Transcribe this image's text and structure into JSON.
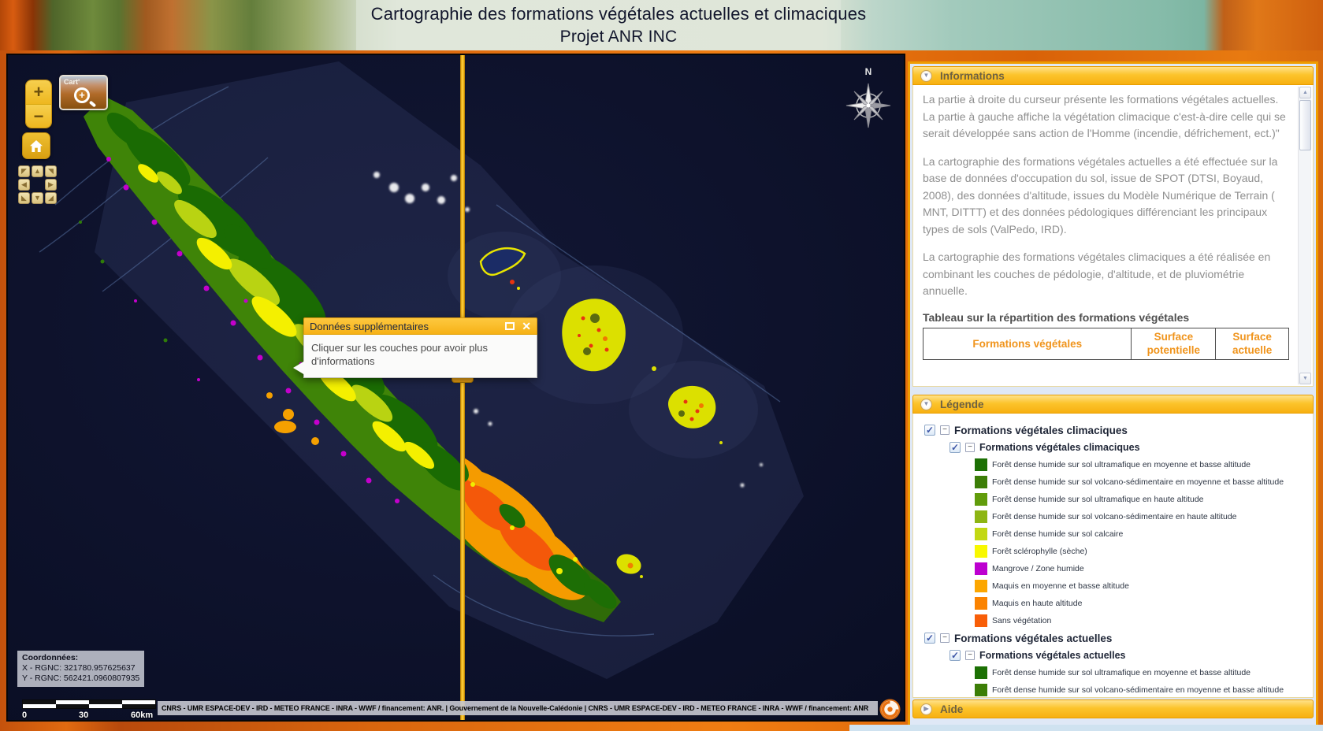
{
  "header": {
    "title_line1": "Cartographie des formations végétales actuelles et climaciques",
    "title_line2": "Projet ANR INC"
  },
  "map": {
    "logo_text": "Cart'",
    "popup": {
      "title": "Données supplémentaires",
      "body": "Cliquer sur les couches pour avoir plus d'informations"
    },
    "coordinates": {
      "label": "Coordonnées:",
      "x_line": "X - RGNC: 321780.957625637",
      "y_line": "Y - RGNC: 562421.0960807935"
    },
    "scalebar": {
      "start": "0",
      "mid": "30",
      "end": "60km"
    },
    "attribution": "CNRS - UMR ESPACE-DEV - IRD - METEO FRANCE - INRA - WWF / financement: ANR. | Gouvernement de la Nouvelle-Calédonie | CNRS - UMR ESPACE-DEV - IRD - METEO FRANCE - INRA - WWF / financement: ANR"
  },
  "sidebar": {
    "informations": {
      "title": "Informations",
      "paragraphs": [
        "La partie à droite du curseur présente les formations végétales actuelles. La partie à gauche affiche la végétation climacique c'est-à-dire celle qui se serait développée sans action de l'Homme (incendie, défrichement, ect.)\"",
        "La cartographie des formations végétales actuelles a été effectuée sur la base de données d'occupation du sol, issue de SPOT (DTSI, Boyaud, 2008), des données d'altitude, issues du Modèle Numérique de Terrain ( MNT, DITTT) et des données pédologiques différenciant les principaux types de sols (ValPedo, IRD).",
        "La cartographie des formations végétales climaciques a été réalisée en combinant les couches de pédologie, d'altitude, et de pluviométrie annuelle."
      ],
      "table_caption": "Tableau sur la répartition des formations végétales",
      "table_headers": [
        "Formations végétales",
        "Surface potentielle",
        "Surface actuelle"
      ]
    },
    "legende": {
      "title": "Légende",
      "groups": [
        {
          "label": "Formations végétales climaciques",
          "checked": true,
          "children": [
            {
              "label": "Formations végétales climaciques",
              "checked": true,
              "items": [
                {
                  "color": "#1c7004",
                  "label": "Forêt dense humide sur sol ultramafique en moyenne et basse altitude"
                },
                {
                  "color": "#3c7e07",
                  "label": "Forêt dense humide sur sol volcano-sédimentaire en moyenne et basse altitude"
                },
                {
                  "color": "#619c0b",
                  "label": "Forêt dense humide sur sol ultramafique en haute altitude"
                },
                {
                  "color": "#8db513",
                  "label": "Forêt dense humide sur sol volcano-sédimentaire en haute altitude"
                },
                {
                  "color": "#c2d813",
                  "label": "Forêt dense humide sur sol calcaire"
                },
                {
                  "color": "#f8f800",
                  "label": "Forêt sclérophylle (sèche)"
                },
                {
                  "color": "#bd00d0",
                  "label": "Mangrove / Zone humide"
                },
                {
                  "color": "#fca600",
                  "label": "Maquis en moyenne et basse altitude"
                },
                {
                  "color": "#fb8300",
                  "label": "Maquis en haute altitude"
                },
                {
                  "color": "#f85e08",
                  "label": "Sans végétation"
                }
              ]
            }
          ]
        },
        {
          "label": "Formations végétales actuelles",
          "checked": true,
          "children": [
            {
              "label": "Formations végétales actuelles",
              "checked": true,
              "items": [
                {
                  "color": "#1c7004",
                  "label": "Forêt dense humide sur sol ultramafique en moyenne et basse altitude"
                },
                {
                  "color": "#3c7e07",
                  "label": "Forêt dense humide sur sol volcano-sédimentaire en moyenne et basse altitude"
                }
              ]
            }
          ]
        }
      ]
    },
    "aide": {
      "title": "Aide"
    }
  },
  "icons": {
    "zoom_in": "+",
    "zoom_out": "−",
    "pan": [
      "◤",
      "▲",
      "◥",
      "◀",
      "▶",
      "◣",
      "▼",
      "◢"
    ],
    "compass": "N",
    "maximize": "",
    "close": "✕",
    "panel_expanded": "▼",
    "panel_collapsed": "▶",
    "check": "✓",
    "collapse_minus": "−",
    "scroll_up": "▲",
    "scroll_down": "▼",
    "magnifier_plus": "+"
  },
  "colors": {
    "accent": "#f7b011",
    "panel_border": "#ef9c00",
    "table_header_text": "#f0941c",
    "ocean": "#0c102a"
  }
}
